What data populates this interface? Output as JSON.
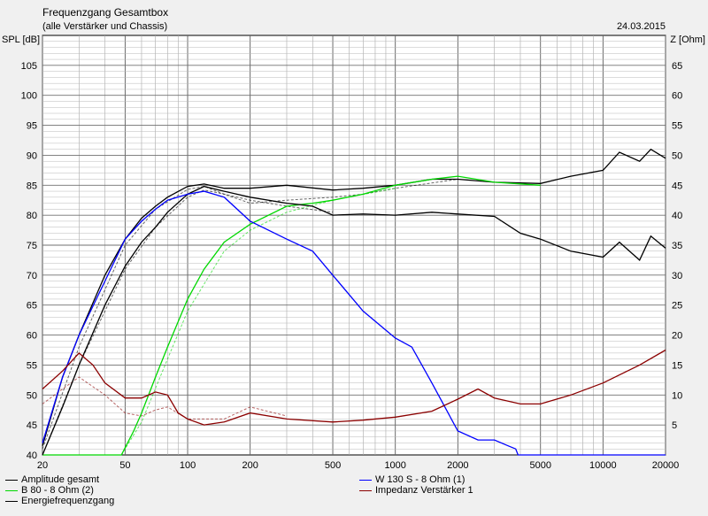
{
  "chart_data": {
    "type": "line",
    "title": "Frequenzgang Gesamtbox",
    "subtitle": "(alle Verstärker und Chassis)",
    "date": "24.03.2015",
    "ylabel_left": "SPL [dB]",
    "ylabel_right": "Z [Ohm]",
    "xscale": "log",
    "xlim": [
      20,
      20000
    ],
    "ylim_left": [
      40,
      110
    ],
    "ylim_right": [
      0,
      70
    ],
    "grid": true,
    "x_ticks": [
      20,
      50,
      100,
      200,
      500,
      1000,
      2000,
      5000,
      10000,
      20000
    ],
    "x_tick_labels": [
      "20",
      "50",
      "100",
      "200",
      "500",
      "1000",
      "2000",
      "5000",
      "10000",
      "20000"
    ],
    "y_ticks_left": [
      "40",
      "45",
      "50",
      "55",
      "60",
      "65",
      "70",
      "75",
      "80",
      "85",
      "90",
      "95",
      "100",
      "105"
    ],
    "y_ticks_right": [
      "5",
      "10",
      "15",
      "20",
      "25",
      "30",
      "35",
      "40",
      "45",
      "50",
      "55",
      "60",
      "65"
    ],
    "series": [
      {
        "name": "Amplitude gesamt",
        "color": "#000000",
        "axis": "left",
        "x": [
          20,
          25,
          30,
          40,
          50,
          60,
          70,
          80,
          100,
          120,
          150,
          200,
          300,
          500,
          700,
          1000,
          1500,
          2000,
          3000,
          5000,
          7000,
          10000,
          12000,
          15000,
          17000,
          20000
        ],
        "y": [
          41.5,
          53,
          60,
          70,
          76,
          79.5,
          81.5,
          83,
          84.8,
          85.2,
          84.5,
          84.5,
          85,
          84.2,
          84.5,
          85,
          86,
          86,
          85.5,
          85.3,
          86.5,
          87.5,
          90.5,
          89,
          91,
          89.5
        ]
      },
      {
        "name": "B 80 - 8 Ohm (2)",
        "color": "#00d800",
        "axis": "left",
        "x": [
          20,
          40,
          48,
          55,
          60,
          70,
          80,
          100,
          120,
          150,
          200,
          300,
          400,
          500,
          700,
          1000,
          1500,
          2000,
          3000,
          5000
        ],
        "y": [
          40,
          40,
          40,
          44,
          47,
          53,
          58,
          66,
          71,
          75.5,
          78.5,
          81.5,
          82,
          82.5,
          83.5,
          85,
          86,
          86.5,
          85.5,
          85
        ]
      },
      {
        "name": "Energiefrequenzgang",
        "color": "#000000",
        "axis": "left",
        "x": [
          20,
          25,
          30,
          40,
          50,
          60,
          70,
          80,
          100,
          120,
          150,
          200,
          300,
          400,
          500,
          700,
          1000,
          1500,
          2000,
          3000,
          4000,
          5000,
          7000,
          10000,
          12000,
          15000,
          17000,
          20000
        ],
        "y": [
          40,
          48,
          55,
          65,
          71.5,
          75.5,
          78,
          80.5,
          83.5,
          84.8,
          84,
          83,
          82,
          81.5,
          80,
          80.2,
          80,
          80.5,
          80.2,
          79.8,
          77,
          76,
          74,
          73,
          75.5,
          72.5,
          76.5,
          74.5
        ]
      },
      {
        "name": "W 130 S - 8 Ohm (1)",
        "color": "#0000ff",
        "axis": "left",
        "x": [
          20,
          25,
          30,
          40,
          50,
          60,
          70,
          80,
          100,
          120,
          150,
          200,
          300,
          400,
          500,
          700,
          1000,
          1200,
          1500,
          2000,
          2500,
          3000,
          3500,
          3800,
          3900,
          5000,
          10000,
          20000
        ],
        "y": [
          42,
          53,
          60,
          69,
          76,
          79,
          81,
          82.5,
          83.5,
          84,
          83,
          79,
          76,
          74,
          70,
          64,
          59.5,
          58,
          52,
          44,
          42.5,
          42.5,
          41.5,
          41,
          40,
          40,
          40,
          40
        ]
      },
      {
        "name": "Impedanz Verstärker 1",
        "color": "#8b0000",
        "axis": "right",
        "x": [
          20,
          25,
          30,
          35,
          40,
          50,
          60,
          70,
          80,
          90,
          100,
          120,
          150,
          200,
          300,
          500,
          700,
          1000,
          1500,
          2000,
          2500,
          3000,
          4000,
          5000,
          7000,
          10000,
          15000,
          20000
        ],
        "y": [
          11,
          14,
          17,
          15,
          12,
          9.5,
          9.5,
          10.5,
          10,
          7,
          6,
          5,
          5.5,
          7,
          6,
          5.5,
          5.8,
          6.3,
          7.3,
          9.3,
          11,
          9.5,
          8.5,
          8.5,
          10,
          12,
          15,
          17.5
        ]
      }
    ],
    "dashed_series": [
      {
        "color": "#000000",
        "axis": "left",
        "x": [
          20,
          30,
          50,
          70,
          100,
          120,
          150,
          200,
          300,
          500,
          700,
          1000,
          2000
        ],
        "y": [
          41,
          58,
          75,
          81,
          84.3,
          84.8,
          83.5,
          82,
          82.5,
          83,
          83.5,
          84.5,
          86
        ]
      },
      {
        "color": "#000000",
        "axis": "left",
        "x": [
          20,
          30,
          50,
          70,
          100,
          120,
          150,
          200,
          300,
          500
        ],
        "y": [
          40,
          55,
          71,
          78,
          83,
          84.2,
          83.5,
          82.5,
          81.5,
          80.5
        ]
      },
      {
        "color": "#00d800",
        "axis": "left",
        "x": [
          48,
          60,
          80,
          100,
          150,
          200,
          300,
          500,
          1000
        ],
        "y": [
          40,
          45.5,
          56,
          64,
          74,
          77.5,
          80.5,
          82.5,
          84.5
        ]
      },
      {
        "color": "#8b0000",
        "axis": "right",
        "x": [
          20,
          25,
          30,
          40,
          50,
          60,
          70,
          80,
          100,
          150,
          200,
          300
        ],
        "y": [
          8.5,
          11,
          13,
          10,
          7,
          6.5,
          7.5,
          8,
          6,
          6,
          8,
          6.5
        ]
      }
    ]
  },
  "legend": [
    {
      "label": "Amplitude gesamt",
      "color": "#000000"
    },
    {
      "label": "B 80 - 8 Ohm (2)",
      "color": "#00d800"
    },
    {
      "label": "Energiefrequenzgang",
      "color": "#000000"
    },
    {
      "label": "W 130 S - 8 Ohm (1)",
      "color": "#0000ff"
    },
    {
      "label": "Impedanz Verstärker 1",
      "color": "#8b0000"
    }
  ]
}
